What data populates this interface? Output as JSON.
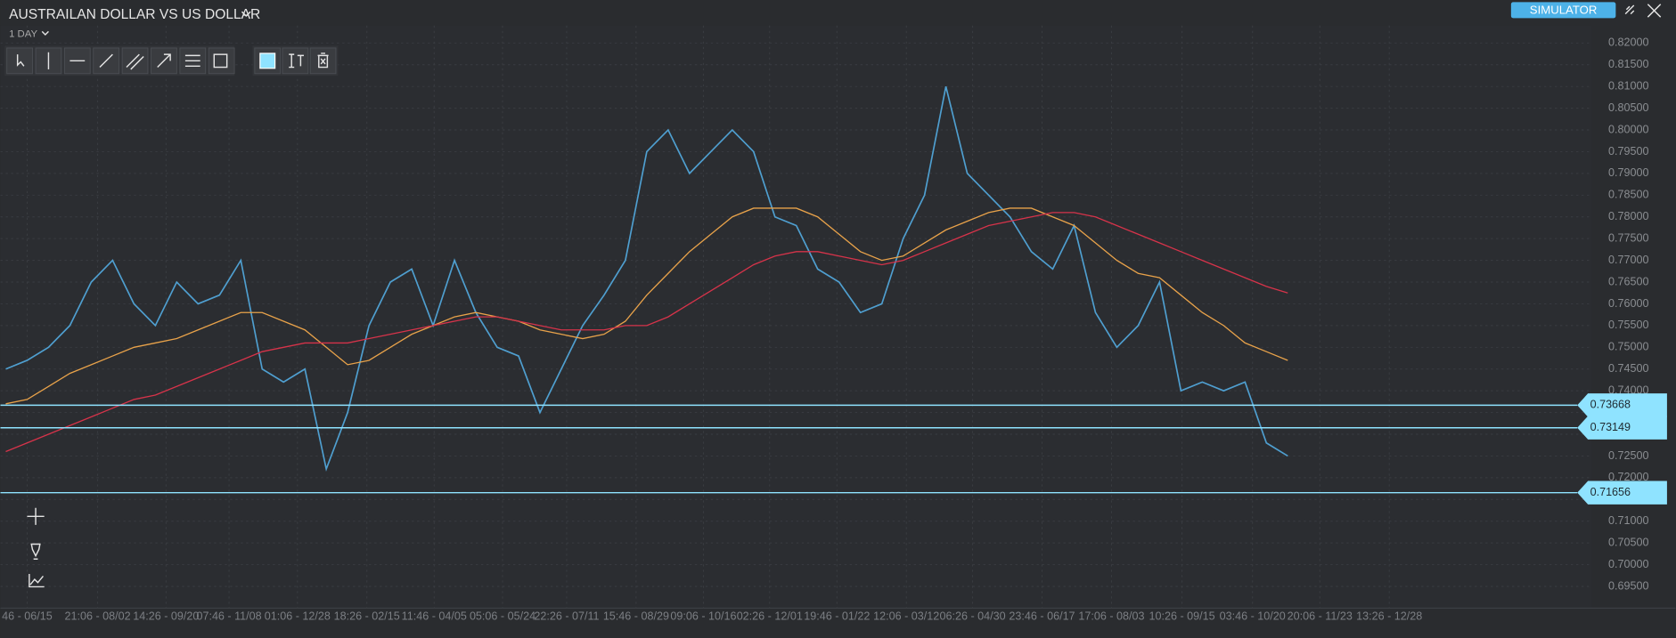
{
  "header": {
    "title": "AUSTRAILAN DOLLAR VS US DOLLAR",
    "timeframe": "1 DAY",
    "mode_button": "SIMULATOR"
  },
  "chart_data": {
    "type": "line",
    "ylim": [
      0.69,
      0.824
    ],
    "yticks": [
      {
        "value": 0.695,
        "label": "0.69500"
      },
      {
        "value": 0.7,
        "label": "0.70000"
      },
      {
        "value": 0.705,
        "label": "0.70500"
      },
      {
        "value": 0.71,
        "label": "0.71000"
      },
      {
        "value": 0.715,
        "label": "0.71500"
      },
      {
        "value": 0.72,
        "label": "0.72000"
      },
      {
        "value": 0.725,
        "label": "0.72500"
      },
      {
        "value": 0.73,
        "label": "0.73000"
      },
      {
        "value": 0.735,
        "label": "0.73500"
      },
      {
        "value": 0.74,
        "label": "0.74000"
      },
      {
        "value": 0.745,
        "label": "0.74500"
      },
      {
        "value": 0.75,
        "label": "0.75000"
      },
      {
        "value": 0.755,
        "label": "0.75500"
      },
      {
        "value": 0.76,
        "label": "0.76000"
      },
      {
        "value": 0.765,
        "label": "0.76500"
      },
      {
        "value": 0.77,
        "label": "0.77000"
      },
      {
        "value": 0.775,
        "label": "0.77500"
      },
      {
        "value": 0.78,
        "label": "0.78000"
      },
      {
        "value": 0.785,
        "label": "0.78500"
      },
      {
        "value": 0.79,
        "label": "0.79000"
      },
      {
        "value": 0.795,
        "label": "0.79500"
      },
      {
        "value": 0.8,
        "label": "0.80000"
      },
      {
        "value": 0.805,
        "label": "0.80500"
      },
      {
        "value": 0.81,
        "label": "0.81000"
      },
      {
        "value": 0.815,
        "label": "0.81500"
      },
      {
        "value": 0.82,
        "label": "0.82000"
      }
    ],
    "xlim": [
      -0.25,
      74.25
    ],
    "xticks": [
      {
        "value": 1,
        "label": "46 - 06/15"
      },
      {
        "value": 4.3,
        "label": "21:06 - 08/02"
      },
      {
        "value": 7.5,
        "label": "14:26 - 09/20"
      },
      {
        "value": 10.45,
        "label": "07:46 - 11/08"
      },
      {
        "value": 13.65,
        "label": "01:06 - 12/28"
      },
      {
        "value": 16.9,
        "label": "18:26 - 02/15"
      },
      {
        "value": 20.05,
        "label": "11:46 - 04/05"
      },
      {
        "value": 23.25,
        "label": "05:06 - 05/24"
      },
      {
        "value": 26.25,
        "label": "22:26 - 07/11"
      },
      {
        "value": 29.5,
        "label": "15:46 - 08/29"
      },
      {
        "value": 32.65,
        "label": "09:06 - 10/16"
      },
      {
        "value": 35.75,
        "label": "02:26 - 12/01"
      },
      {
        "value": 38.9,
        "label": "19:46 - 01/22"
      },
      {
        "value": 42.15,
        "label": "12:06 - 03/12"
      },
      {
        "value": 45.25,
        "label": "06:26 - 04/30"
      },
      {
        "value": 48.5,
        "label": "23:46 - 06/17"
      },
      {
        "value": 51.75,
        "label": "17:06 - 08/03"
      },
      {
        "value": 55.05,
        "label": "10:26 - 09/15"
      },
      {
        "value": 58.35,
        "label": "03:46 - 10/20"
      },
      {
        "value": 61.5,
        "label": "20:06 - 11/23"
      },
      {
        "value": 64.75,
        "label": "13:26 - 12/28"
      }
    ],
    "grid": true,
    "x": [
      0,
      1,
      2,
      3,
      4,
      5,
      6,
      7,
      8,
      9,
      10,
      11,
      12,
      13,
      14,
      15,
      16,
      17,
      18,
      19,
      20,
      21,
      22,
      23,
      24,
      25,
      26,
      27,
      28,
      29,
      30,
      31,
      32,
      33,
      34,
      35,
      36,
      37,
      38,
      39,
      40,
      41,
      42,
      43,
      44,
      45,
      46,
      47,
      48,
      49,
      50,
      51,
      52,
      53,
      54,
      55,
      56,
      57,
      58,
      59,
      60
    ],
    "series": [
      {
        "color": "#4f9fd0",
        "values": [
          0.745,
          0.747,
          0.75,
          0.755,
          0.765,
          0.77,
          0.76,
          0.755,
          0.765,
          0.76,
          0.762,
          0.77,
          0.745,
          0.742,
          0.745,
          0.722,
          0.735,
          0.755,
          0.765,
          0.768,
          0.755,
          0.77,
          0.758,
          0.75,
          0.748,
          0.735,
          0.745,
          0.755,
          0.762,
          0.77,
          0.795,
          0.8,
          0.79,
          0.795,
          0.8,
          0.795,
          0.78,
          0.778,
          0.768,
          0.765,
          0.758,
          0.76,
          0.775,
          0.785,
          0.81,
          0.79,
          0.785,
          0.78,
          0.772,
          0.768,
          0.778,
          0.758,
          0.75,
          0.755,
          0.765,
          0.74,
          0.742,
          0.74,
          0.742,
          0.728,
          0.725
        ]
      },
      {
        "color": "#e8a24a",
        "values": [
          0.737,
          0.738,
          0.741,
          0.744,
          0.746,
          0.748,
          0.75,
          0.751,
          0.752,
          0.754,
          0.756,
          0.758,
          0.758,
          0.756,
          0.754,
          0.75,
          0.746,
          0.747,
          0.75,
          0.753,
          0.755,
          0.757,
          0.758,
          0.757,
          0.756,
          0.754,
          0.753,
          0.752,
          0.753,
          0.756,
          0.762,
          0.767,
          0.772,
          0.776,
          0.78,
          0.782,
          0.782,
          0.782,
          0.78,
          0.776,
          0.772,
          0.77,
          0.771,
          0.774,
          0.777,
          0.779,
          0.781,
          0.782,
          0.782,
          0.78,
          0.778,
          0.774,
          0.77,
          0.767,
          0.766,
          0.762,
          0.758,
          0.755,
          0.751,
          0.749,
          0.747
        ]
      },
      {
        "color": "#d6334a",
        "values": [
          0.726,
          0.728,
          0.73,
          0.732,
          0.734,
          0.736,
          0.738,
          0.739,
          0.741,
          0.743,
          0.745,
          0.747,
          0.749,
          0.75,
          0.751,
          0.751,
          0.751,
          0.752,
          0.753,
          0.754,
          0.755,
          0.756,
          0.757,
          0.757,
          0.756,
          0.755,
          0.754,
          0.754,
          0.754,
          0.755,
          0.755,
          0.757,
          0.76,
          0.763,
          0.766,
          0.769,
          0.771,
          0.772,
          0.772,
          0.771,
          0.77,
          0.769,
          0.77,
          0.772,
          0.774,
          0.776,
          0.778,
          0.779,
          0.78,
          0.781,
          0.781,
          0.78,
          0.778,
          0.776,
          0.774,
          0.772,
          0.77,
          0.768,
          0.766,
          0.764,
          0.7625
        ]
      }
    ],
    "hlines": [
      0.73668,
      0.73149,
      0.71656
    ],
    "hline_color": "#8fe3ff"
  }
}
